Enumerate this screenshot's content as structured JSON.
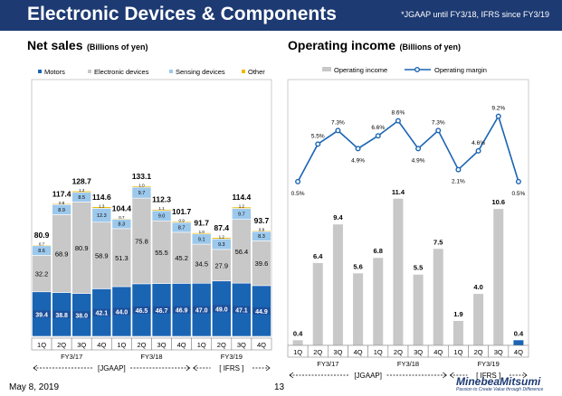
{
  "page": {
    "title": "Electronic Devices & Components",
    "note": "*JGAAP until FY3/18, IFRS since FY3/19",
    "date": "May 8, 2019",
    "page_number": "13",
    "logo_name": "MinebeaMitsumi",
    "logo_tagline": "Passion to Create Value through Difference"
  },
  "colors": {
    "title_bar": "#1d3a72",
    "motors": "#1a64b4",
    "electronic": "#c8c8c8",
    "sensing": "#9cc8ec",
    "other": "#f2b800",
    "op_income": "#c8c8c8",
    "op_income_highlight": "#1a64b4",
    "op_margin": "#1a64b4"
  },
  "chart_data": [
    {
      "type": "bar",
      "stacked": true,
      "title": "Net sales",
      "unit_label": "(Billions of yen)",
      "categories": [
        "1Q",
        "2Q",
        "3Q",
        "4Q",
        "1Q",
        "2Q",
        "3Q",
        "4Q",
        "1Q",
        "2Q",
        "3Q",
        "4Q"
      ],
      "fiscal_years": [
        {
          "label": "FY3/17",
          "start": 0,
          "end": 3
        },
        {
          "label": "FY3/18",
          "start": 4,
          "end": 7
        },
        {
          "label": "FY3/19",
          "start": 8,
          "end": 11
        }
      ],
      "standards": [
        {
          "label": "[JGAAP]",
          "start": 0,
          "end": 7
        },
        {
          "label": "[ IFRS ]",
          "start": 8,
          "end": 11
        }
      ],
      "series": [
        {
          "name": "Motors",
          "color_key": "motors",
          "values": [
            39.4,
            38.8,
            38.0,
            42.1,
            44.0,
            46.5,
            46.7,
            46.9,
            47.0,
            49.0,
            47.1,
            44.9
          ]
        },
        {
          "name": "Electronic devices",
          "color_key": "electronic",
          "values": [
            32.2,
            68.9,
            80.9,
            58.9,
            51.3,
            75.8,
            55.5,
            45.2,
            34.5,
            27.9,
            56.4,
            39.6
          ]
        },
        {
          "name": "Sensing devices",
          "color_key": "sensing",
          "values": [
            8.6,
            8.9,
            8.5,
            12.3,
            8.3,
            9.7,
            9.0,
            8.7,
            9.1,
            9.3,
            9.7,
            8.3
          ]
        },
        {
          "name": "Other",
          "color_key": "other",
          "values": [
            0.7,
            0.8,
            1.2,
            1.3,
            0.7,
            1.0,
            1.1,
            0.9,
            1.0,
            1.2,
            1.2,
            0.8
          ]
        }
      ],
      "labels": {
        "motors": [
          "39.4",
          "38.8",
          "38.0",
          "42.1",
          "44.0",
          "46.5",
          "46.7",
          "46.9",
          "47.0",
          "49.0",
          "47.1",
          "44.9"
        ],
        "electronic": [
          "32.2",
          "68.9",
          "80.9",
          "58.9",
          "51.3",
          "75.8",
          "55.5",
          "45.2",
          "34.5",
          "27.9",
          "56.4",
          "39.6"
        ],
        "sensing": [
          "8.6",
          "8.9",
          "8.5",
          "12.3",
          "8.3",
          "9.7",
          "9.0",
          "8.7",
          "9.1",
          "9.3",
          "9.7",
          "8.3"
        ],
        "other": [
          "0.7",
          "0.8",
          "1.2",
          "1.3",
          "0.7",
          "1.0",
          "1.1",
          "0.9",
          "1.0",
          "1.2",
          "1.2",
          "0.8"
        ]
      },
      "totals": [
        80.9,
        117.4,
        128.7,
        114.6,
        104.4,
        133.1,
        112.3,
        101.7,
        91.7,
        87.4,
        114.4,
        93.7
      ],
      "total_labels": [
        "80.9",
        "117.4",
        "128.7",
        "114.6",
        "104.4",
        "133.1",
        "112.3",
        "101.7",
        "91.7",
        "87.4",
        "114.4",
        "93.7"
      ],
      "ylim": [
        0,
        140
      ],
      "legend_position": "top"
    },
    {
      "type": "bar+line",
      "title": "Operating income",
      "unit_label": "(Billions of yen)",
      "categories": [
        "1Q",
        "2Q",
        "3Q",
        "4Q",
        "1Q",
        "2Q",
        "3Q",
        "4Q",
        "1Q",
        "2Q",
        "3Q",
        "4Q"
      ],
      "fiscal_years": [
        {
          "label": "FY3/17",
          "start": 0,
          "end": 3
        },
        {
          "label": "FY3/18",
          "start": 4,
          "end": 7
        },
        {
          "label": "FY3/19",
          "start": 8,
          "end": 11
        }
      ],
      "standards": [
        {
          "label": "[JGAAP]",
          "start": 0,
          "end": 7
        },
        {
          "label": "[ IFRS ]",
          "start": 8,
          "end": 11
        }
      ],
      "series": [
        {
          "name": "Operating income",
          "kind": "bar",
          "values": [
            0.4,
            6.4,
            9.4,
            5.6,
            6.8,
            11.4,
            5.5,
            7.5,
            1.9,
            4.0,
            10.6,
            0.4
          ],
          "labels": [
            "0.4",
            "6.4",
            "9.4",
            "5.6",
            "6.8",
            "11.4",
            "5.5",
            "7.5",
            "1.9",
            "4.0",
            "10.6",
            "0.4"
          ],
          "highlight_index": 11
        },
        {
          "name": "Operating margin",
          "kind": "line",
          "unit": "%",
          "values": [
            0.5,
            5.5,
            7.3,
            4.9,
            6.6,
            8.6,
            4.9,
            7.3,
            2.1,
            4.6,
            9.2,
            0.5
          ],
          "labels": [
            "0.5%",
            "5.5%",
            "7.3%",
            "4.9%",
            "6.6%",
            "8.6%",
            "4.9%",
            "7.3%",
            "2.1%",
            "4.6%",
            "9.2%",
            "0.5%"
          ]
        }
      ],
      "ylim_bar": [
        0,
        13
      ],
      "ylim_line": [
        0,
        10
      ],
      "legend_position": "top"
    }
  ]
}
